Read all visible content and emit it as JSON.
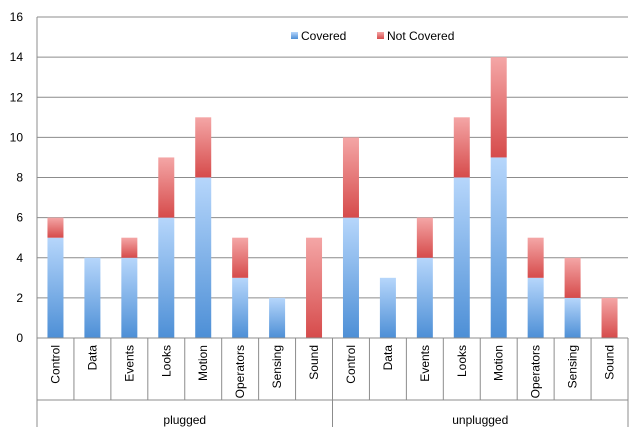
{
  "chart_data": {
    "type": "bar",
    "stacked": true,
    "title": "",
    "xlabel": "",
    "ylabel": "",
    "ylim": [
      0,
      16
    ],
    "yticks": [
      0,
      2,
      4,
      6,
      8,
      10,
      12,
      14,
      16
    ],
    "grid": true,
    "legend_position": "top-center",
    "colors": {
      "covered_top": "#b6d6fb",
      "covered_bottom": "#4d8fd6",
      "not_covered_top": "#f4a6a6",
      "not_covered_bottom": "#d64b4b"
    },
    "groups": [
      {
        "name": "plugged",
        "categories": [
          "Control",
          "Data",
          "Events",
          "Looks",
          "Motion",
          "Operators",
          "Sensing",
          "Sound"
        ]
      },
      {
        "name": "unplugged",
        "categories": [
          "Control",
          "Data",
          "Events",
          "Looks",
          "Motion",
          "Operators",
          "Sensing",
          "Sound"
        ]
      }
    ],
    "series": [
      {
        "name": "Covered",
        "values": [
          5,
          4,
          4,
          6,
          8,
          3,
          2,
          0,
          6,
          3,
          4,
          8,
          9,
          3,
          2,
          0
        ]
      },
      {
        "name": "Not Covered",
        "values": [
          1,
          0,
          1,
          3,
          3,
          2,
          0,
          5,
          4,
          0,
          2,
          3,
          5,
          2,
          2,
          2
        ]
      }
    ]
  }
}
